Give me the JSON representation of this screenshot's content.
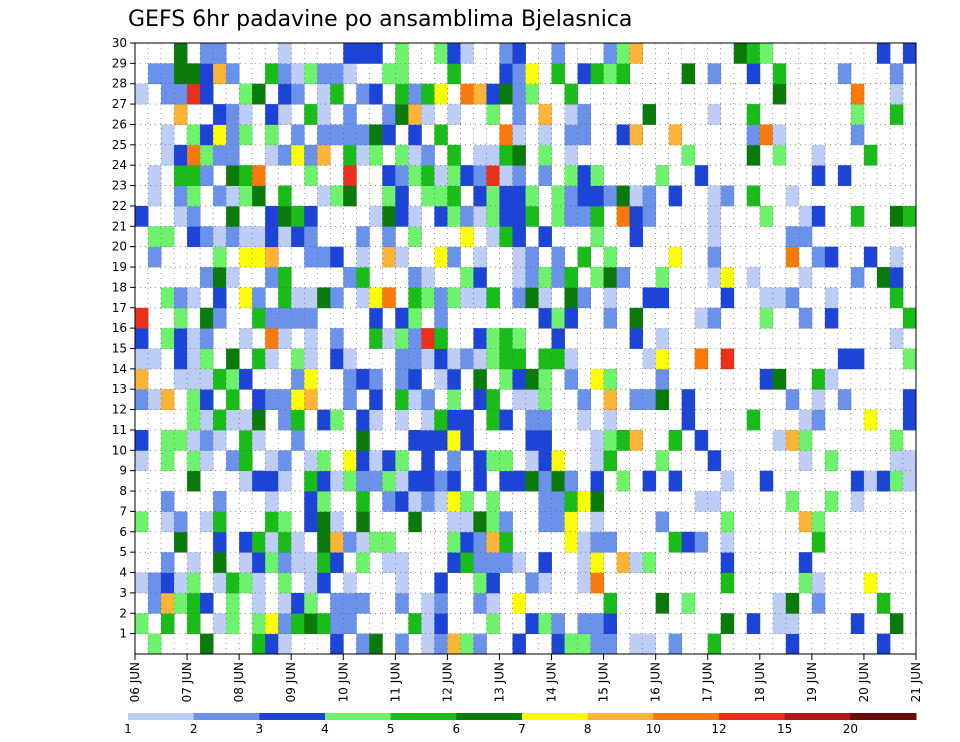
{
  "chart_data": {
    "type": "heatmap",
    "title": "GEFS 6hr padavine po ansamblima Bjelasnica",
    "y_label_ticks": [
      "1",
      "2",
      "3",
      "4",
      "5",
      "6",
      "7",
      "8",
      "9",
      "10",
      "11",
      "12",
      "13",
      "14",
      "15",
      "16",
      "17",
      "18",
      "19",
      "20",
      "21",
      "22",
      "23",
      "24",
      "25",
      "26",
      "27",
      "28",
      "29",
      "30"
    ],
    "x_date_ticks": [
      "06 JUN",
      "07 JUN",
      "08 JUN",
      "09 JUN",
      "10 JUN",
      "11 JUN",
      "12 JUN",
      "13 JUN",
      "14 JUN",
      "15 JUN",
      "16 JUN",
      "17 JUN",
      "18 JUN",
      "19 JUN",
      "20 JUN",
      "21 JUN"
    ],
    "y_range": [
      1,
      30
    ],
    "x_range": [
      "06 JUN",
      "21 JUN"
    ],
    "time_step": "6hr",
    "grid": "dotted",
    "colorbar": {
      "placement": "bottom",
      "tick_labels": [
        "1",
        "2",
        "3",
        "4",
        "5",
        "6",
        "7",
        "8",
        "10",
        "12",
        "15",
        "20"
      ],
      "colors": [
        "#bdcdf6",
        "#6b92ea",
        "#1c44d6",
        "#6ef16c",
        "#19bc19",
        "#0a7a0a",
        "#fdfd0a",
        "#fbb338",
        "#f87a0c",
        "#e8301a",
        "#b3161a",
        "#6a0a0a"
      ]
    },
    "note_cells": "Each cell = one ensemble member (1-30) x one 6-hour step; category index 0-11 maps to colorbar bins",
    "cells": [
      [
        1,
        1
      ],
      [
        1,
        9
      ],
      [
        1,
        10
      ],
      [
        1,
        11
      ],
      [
        1,
        12
      ],
      [
        1,
        15
      ],
      [
        1,
        16
      ],
      [
        1,
        17
      ],
      [
        1,
        25
      ],
      [
        1,
        26
      ],
      [
        1,
        27
      ],
      [
        1,
        33
      ],
      [
        1,
        36
      ],
      [
        1,
        39
      ],
      [
        1,
        43
      ],
      [
        1,
        47
      ],
      [
        1,
        50
      ],
      [
        1,
        52
      ],
      [
        1,
        53
      ],
      [
        1,
        56
      ],
      [
        1,
        61
      ],
      [
        1,
        62
      ],
      [
        1,
        72
      ],
      [
        1,
        79
      ],
      [
        1,
        80
      ],
      [
        1,
        81
      ],
      [
        1,
        82
      ],
      [
        1,
        83
      ],
      [
        1,
        84
      ],
      [
        1,
        89
      ],
      [
        1,
        95
      ],
      [
        1,
        109
      ],
      [
        1,
        114
      ],
      [
        1,
        119
      ],
      [
        1,
        121
      ],
      [
        1,
        132
      ],
      [
        1,
        133
      ],
      [
        1,
        144
      ],
      [
        1,
        147
      ],
      [
        1,
        151
      ],
      [
        1,
        166
      ],
      [
        1,
        171
      ],
      [
        1,
        173
      ],
      [
        1,
        177
      ],
      [
        1,
        178
      ],
      [
        1,
        182
      ],
      [
        1,
        185
      ],
      [
        1,
        189
      ],
      [
        1,
        191
      ],
      [
        1,
        193
      ],
      [
        1,
        194
      ],
      [
        1,
        195
      ],
      [
        1,
        199
      ],
      [
        1,
        200
      ],
      [
        1,
        203
      ],
      [
        1,
        205
      ],
      [
        1,
        206
      ],
      [
        1,
        209
      ],
      [
        1,
        212
      ],
      [
        1,
        213
      ],
      [
        1,
        214
      ],
      [
        1,
        216
      ],
      [
        1,
        219
      ],
      [
        1,
        223
      ],
      [
        1,
        224
      ],
      [
        1,
        227
      ],
      [
        1,
        229
      ],
      [
        1,
        230
      ],
      [
        1,
        233
      ],
      [
        1,
        234
      ],
      [
        1,
        239
      ],
      [
        1,
        240
      ],
      [
        1,
        244
      ],
      [
        1,
        245
      ],
      [
        1,
        246
      ],
      [
        1,
        247
      ],
      [
        1,
        248
      ],
      [
        1,
        253
      ],
      [
        1,
        254
      ],
      [
        1,
        257
      ],
      [
        1,
        258
      ],
      [
        1,
        260
      ],
      [
        1,
        263
      ],
      [
        1,
        264
      ],
      [
        1,
        265
      ],
      [
        1,
        266
      ],
      [
        1,
        267
      ],
      [
        1,
        268
      ],
      [
        1,
        274
      ],
      [
        1,
        278
      ],
      [
        1,
        279
      ],
      [
        1,
        282
      ],
      [
        1,
        283
      ],
      [
        1,
        284
      ],
      [
        1,
        285
      ],
      [
        1,
        286
      ],
      [
        1,
        287
      ],
      [
        1,
        288
      ],
      [
        1,
        293
      ],
      [
        1,
        294
      ],
      [
        1,
        297
      ],
      [
        1,
        298
      ],
      [
        1,
        299
      ],
      [
        1,
        303
      ],
      [
        1,
        304
      ],
      [
        1,
        307
      ],
      [
        1,
        308
      ],
      [
        1,
        310
      ],
      [
        1,
        313
      ],
      [
        1,
        314
      ],
      [
        1,
        315
      ],
      [
        1,
        316
      ],
      [
        1,
        318
      ],
      [
        1,
        320
      ],
      [
        1,
        323
      ],
      [
        1,
        324
      ],
      [
        1,
        325
      ],
      [
        1,
        326
      ],
      [
        1,
        328
      ],
      [
        1,
        333
      ],
      [
        1,
        336
      ],
      [
        1,
        337
      ],
      [
        1,
        339
      ],
      [
        1,
        340
      ],
      [
        1,
        344
      ],
      [
        1,
        345
      ],
      [
        1,
        347
      ],
      [
        1,
        348
      ],
      [
        1,
        350
      ],
      [
        1,
        353
      ],
      [
        1,
        354
      ],
      [
        1,
        355
      ],
      [
        1,
        356
      ],
      [
        1,
        357
      ],
      [
        1,
        358
      ],
      [
        1,
        363
      ],
      [
        1,
        366
      ],
      [
        1,
        367
      ],
      [
        1,
        368
      ],
      [
        1,
        373
      ],
      [
        1,
        374
      ],
      [
        1,
        377
      ],
      [
        1,
        378
      ],
      [
        1,
        379
      ],
      [
        1,
        383
      ],
      [
        1,
        384
      ],
      [
        1,
        386
      ],
      [
        1,
        388
      ],
      [
        1,
        389
      ],
      [
        1,
        394
      ],
      [
        1,
        396
      ],
      [
        1,
        397
      ],
      [
        1,
        398
      ],
      [
        1,
        399
      ],
      [
        1,
        403
      ],
      [
        1,
        405
      ],
      [
        1,
        406
      ],
      [
        1,
        410
      ],
      [
        1,
        411
      ],
      [
        1,
        413
      ],
      [
        1,
        414
      ],
      [
        1,
        415
      ],
      [
        1,
        416
      ],
      [
        1,
        417
      ],
      [
        1,
        418
      ],
      [
        1,
        420
      ],
      [
        1,
        421
      ],
      [
        1,
        422
      ],
      [
        1,
        423
      ],
      [
        1,
        426
      ],
      [
        1,
        427
      ],
      [
        1,
        432
      ],
      [
        1,
        433
      ],
      [
        1,
        435
      ],
      [
        1,
        436
      ],
      [
        1,
        437
      ],
      [
        1,
        438
      ],
      [
        1,
        442
      ],
      [
        1,
        443
      ],
      [
        1,
        445
      ],
      [
        1,
        447
      ],
      [
        1,
        449
      ],
      [
        1,
        450
      ],
      [
        1,
        452
      ],
      [
        1,
        453
      ],
      [
        1,
        454
      ],
      [
        1,
        457
      ],
      [
        1,
        458
      ],
      [
        1,
        459
      ],
      [
        1,
        463
      ],
      [
        1,
        464
      ],
      [
        1,
        465
      ],
      [
        1,
        467
      ],
      [
        1,
        468
      ],
      [
        1,
        469
      ],
      [
        1,
        470
      ],
      [
        1,
        472
      ],
      [
        1,
        475
      ],
      [
        1,
        476
      ],
      [
        1,
        478
      ],
      [
        1,
        479
      ],
      [
        1,
        483
      ],
      [
        1,
        485
      ],
      [
        1,
        486
      ],
      [
        1,
        487
      ],
      [
        1,
        488
      ],
      [
        1,
        489
      ],
      [
        1,
        493
      ],
      [
        1,
        496
      ],
      [
        1,
        497
      ],
      [
        1,
        498
      ],
      [
        1,
        499
      ],
      [
        1,
        500
      ],
      [
        1,
        502
      ],
      [
        1,
        503
      ],
      [
        1,
        504
      ],
      [
        1,
        505
      ],
      [
        1,
        506
      ],
      [
        1,
        507
      ],
      [
        1,
        508
      ],
      [
        1,
        509
      ],
      [
        1,
        512
      ],
      [
        1,
        513
      ],
      [
        1,
        514
      ],
      [
        1,
        517
      ],
      [
        1,
        518
      ],
      [
        1,
        519
      ],
      [
        1,
        523
      ],
      [
        1,
        524
      ],
      [
        1,
        525
      ],
      [
        1,
        526
      ],
      [
        1,
        527
      ],
      [
        1,
        528
      ],
      [
        1,
        529
      ],
      [
        1,
        531
      ],
      [
        1,
        533
      ],
      [
        1,
        535
      ],
      [
        1,
        536
      ],
      [
        1,
        537
      ],
      [
        1,
        538
      ],
      [
        1,
        539
      ],
      [
        1,
        543
      ],
      [
        1,
        544
      ],
      [
        1,
        545
      ],
      [
        1,
        546
      ],
      [
        1,
        549
      ],
      [
        1,
        550
      ],
      [
        1,
        552
      ],
      [
        1,
        553
      ],
      [
        1,
        555
      ],
      [
        1,
        557
      ],
      [
        1,
        558
      ],
      [
        1,
        559
      ],
      [
        1,
        562
      ],
      [
        1,
        563
      ],
      [
        1,
        564
      ],
      [
        1,
        568
      ],
      [
        1,
        569
      ],
      [
        1,
        570
      ],
      [
        1,
        573
      ],
      [
        1,
        574
      ],
      [
        1,
        575
      ],
      [
        1,
        579
      ],
      [
        1,
        581
      ],
      [
        1,
        582
      ],
      [
        1,
        583
      ],
      [
        1,
        584
      ],
      [
        1,
        585
      ],
      [
        1,
        586
      ],
      [
        1,
        587
      ],
      [
        1,
        588
      ],
      [
        1,
        589
      ],
      [
        1,
        591
      ],
      [
        1,
        594
      ],
      [
        1,
        595
      ],
      [
        1,
        596
      ],
      [
        1,
        597
      ],
      [
        1,
        598
      ],
      [
        1,
        599
      ]
    ]
  }
}
